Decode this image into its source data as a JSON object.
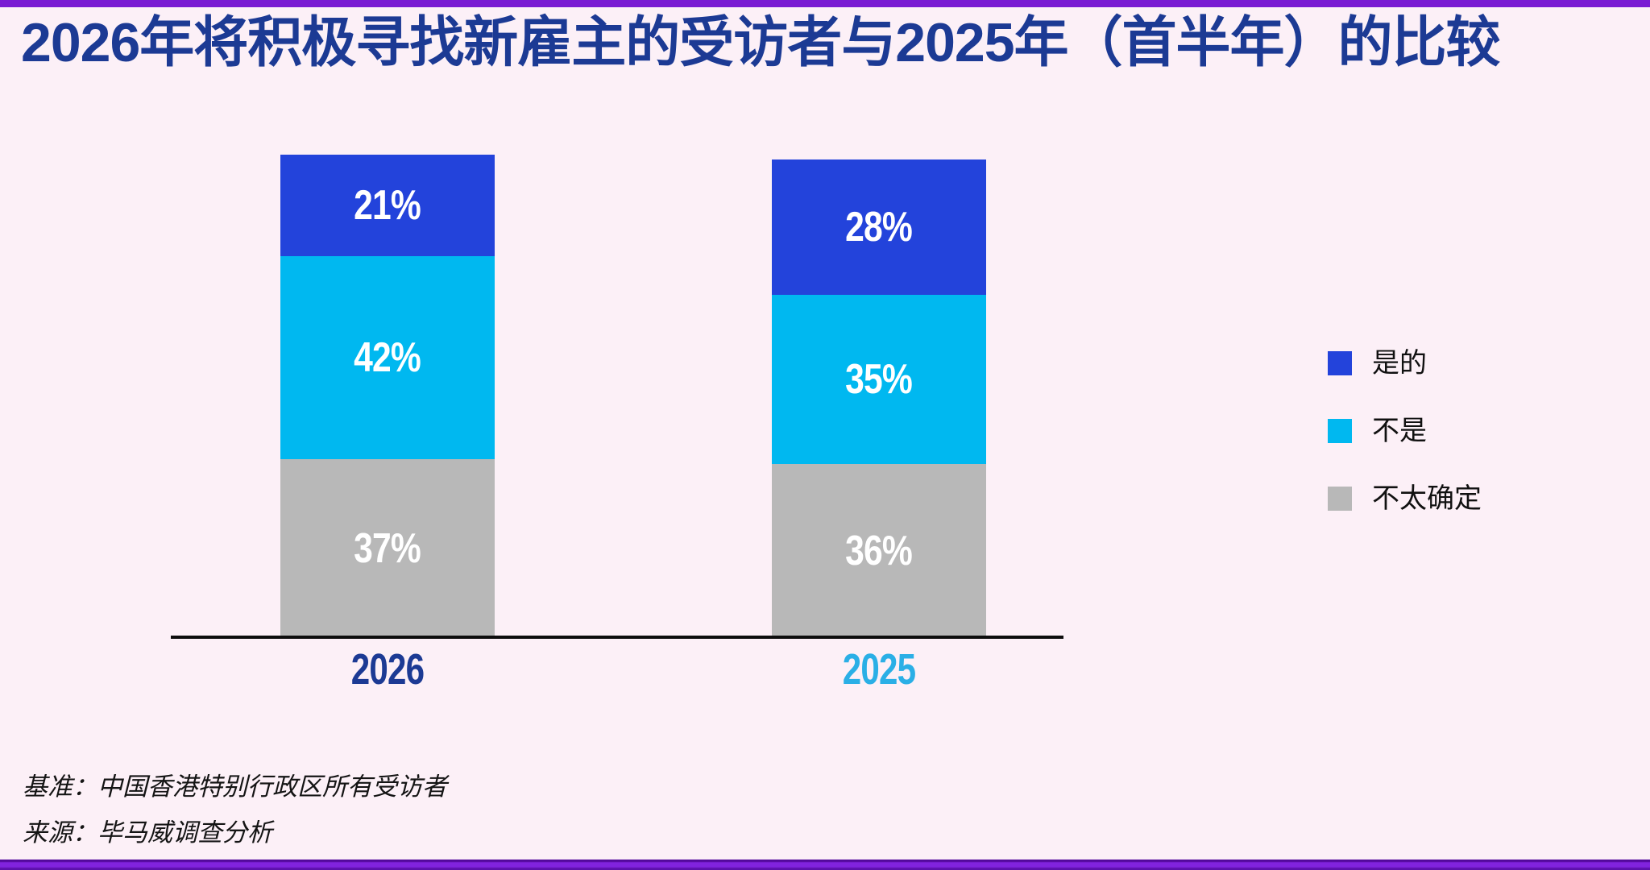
{
  "title": "2026年将积极寻找新雇主的受访者与2025年（首半年）的比较",
  "chart_data": {
    "type": "bar",
    "stacked": true,
    "unit": "%",
    "orientation": "vertical",
    "categories": [
      "2026",
      "2025"
    ],
    "series": [
      {
        "name": "是的",
        "color": "#2343db",
        "values": [
          21,
          28
        ]
      },
      {
        "name": "不是",
        "color": "#00b8f0",
        "values": [
          42,
          35
        ]
      },
      {
        "name": "不太确定",
        "color": "#b8b8b8",
        "values": [
          37,
          36
        ]
      }
    ],
    "data_labels": [
      [
        "21%",
        "42%",
        "37%"
      ],
      [
        "28%",
        "35%",
        "36%"
      ]
    ],
    "legend_position": "right",
    "grid": false,
    "ylim": [
      0,
      100
    ],
    "category_label_colors": [
      "#1c3a94",
      "#2aafe6"
    ],
    "axis_line_color": "#0d0d0d"
  },
  "footnotes": [
    "基准：中国香港特别行政区所有受访者",
    "来源：毕马威调查分析"
  ],
  "colors": {
    "background": "#fcf0f7",
    "accent_purple": "#7a1bd3",
    "title_navy": "#1c3a94",
    "legend_text": "#111111"
  }
}
